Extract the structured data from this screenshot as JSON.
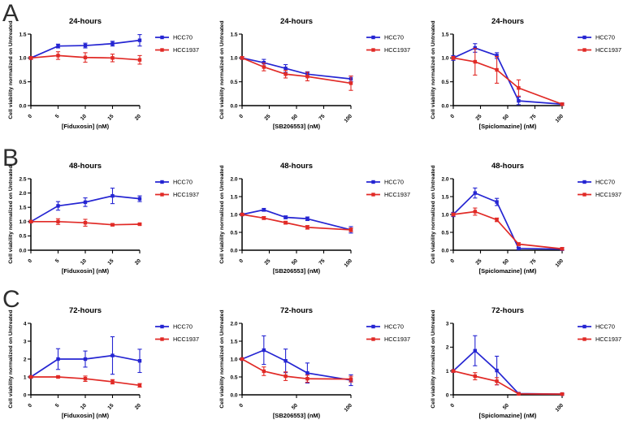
{
  "figure": {
    "background": "#ffffff",
    "panels": [
      {
        "letter": "A",
        "time": "24-hours"
      },
      {
        "letter": "B",
        "time": "48-hours"
      },
      {
        "letter": "C",
        "time": "72-hours"
      }
    ],
    "ylabel": "Cell viability normalized on Untreated",
    "legend_entries": [
      "HCC70",
      "HCC1937"
    ]
  },
  "colors": {
    "hcc70": "#2525d2",
    "hcc1937": "#e12a26",
    "axis": "#000000",
    "text": "#000000"
  },
  "chart_data": [
    {
      "type": "line",
      "panel": "A",
      "title": "24-hours",
      "xlabel": "[Fiduxosin] (nM)",
      "ylabel": "Cell viability normalized on Untreated",
      "x": [
        0,
        5,
        10,
        15,
        20
      ],
      "xlim": [
        0,
        20
      ],
      "xtick_values": [
        0,
        5,
        10,
        15,
        20
      ],
      "xtick_labels": [
        "0",
        "5",
        "10",
        "15",
        "20"
      ],
      "ylim": [
        0,
        1.5
      ],
      "ytick_values": [
        0,
        0.5,
        1,
        1.5
      ],
      "ytick_labels": [
        "0.0",
        "0.5",
        "1.0",
        "1.5"
      ],
      "grid": false,
      "legend_position": "right-top",
      "series": [
        {
          "name": "HCC70",
          "color": "#2525d2",
          "values": [
            1.0,
            1.25,
            1.26,
            1.3,
            1.37
          ],
          "errors": [
            0.03,
            0.04,
            0.05,
            0.05,
            0.12
          ]
        },
        {
          "name": "HCC1937",
          "color": "#e12a26",
          "values": [
            1.0,
            1.05,
            1.01,
            1.0,
            0.96
          ],
          "errors": [
            0.03,
            0.08,
            0.1,
            0.08,
            0.09
          ]
        }
      ]
    },
    {
      "type": "line",
      "panel": "A",
      "title": "24-hours",
      "xlabel": "[SB206553] (nM)",
      "ylabel": "Cell viability normalized on Untreated",
      "x": [
        0,
        20,
        40,
        60,
        100
      ],
      "xlim": [
        0,
        100
      ],
      "xtick_values": [
        0,
        25,
        50,
        75,
        100
      ],
      "xtick_labels": [
        "0",
        "25",
        "50",
        "75",
        "100"
      ],
      "ylim": [
        0,
        1.5
      ],
      "ytick_values": [
        0,
        0.5,
        1,
        1.5
      ],
      "ytick_labels": [
        "0.0",
        "0.5",
        "1.0",
        "1.5"
      ],
      "grid": false,
      "legend_position": "right-top",
      "series": [
        {
          "name": "HCC70",
          "color": "#2525d2",
          "values": [
            1.0,
            0.9,
            0.78,
            0.66,
            0.56
          ],
          "errors": [
            0.03,
            0.07,
            0.08,
            0.05,
            0.06
          ]
        },
        {
          "name": "HCC1937",
          "color": "#e12a26",
          "values": [
            1.0,
            0.81,
            0.66,
            0.61,
            0.47
          ],
          "errors": [
            0.03,
            0.08,
            0.08,
            0.09,
            0.15
          ]
        }
      ]
    },
    {
      "type": "line",
      "panel": "A",
      "title": "24-hours",
      "xlabel": "[Spiclomazine] (nM)",
      "ylabel": "Cell viability normalized on Untreated",
      "x": [
        0,
        20,
        40,
        60,
        100
      ],
      "xlim": [
        0,
        100
      ],
      "xtick_values": [
        0,
        25,
        50,
        75,
        100
      ],
      "xtick_labels": [
        "0",
        "25",
        "50",
        "75",
        "100"
      ],
      "ylim": [
        0,
        1.5
      ],
      "ytick_values": [
        0,
        0.5,
        1,
        1.5
      ],
      "ytick_labels": [
        "0.0",
        "0.5",
        "1.0",
        "1.5"
      ],
      "grid": false,
      "legend_position": "right-top",
      "series": [
        {
          "name": "HCC70",
          "color": "#2525d2",
          "values": [
            1.0,
            1.21,
            1.05,
            0.1,
            0.03
          ],
          "errors": [
            0.05,
            0.09,
            0.06,
            0.08,
            0.02
          ]
        },
        {
          "name": "HCC1937",
          "color": "#e12a26",
          "values": [
            1.0,
            0.92,
            0.75,
            0.37,
            0.03
          ],
          "errors": [
            0.03,
            0.28,
            0.28,
            0.17,
            0.02
          ]
        }
      ]
    },
    {
      "type": "line",
      "panel": "B",
      "title": "48-hours",
      "xlabel": "[Fiduxosin] (nM)",
      "ylabel": "Cell viability normalized on Untreated",
      "x": [
        0,
        5,
        10,
        15,
        20
      ],
      "xlim": [
        0,
        20
      ],
      "xtick_values": [
        0,
        5,
        10,
        15,
        20
      ],
      "xtick_labels": [
        "0",
        "5",
        "10",
        "15",
        "20"
      ],
      "ylim": [
        0,
        2.5
      ],
      "ytick_values": [
        0,
        0.5,
        1,
        1.5,
        2,
        2.5
      ],
      "ytick_labels": [
        "0.0",
        "0.5",
        "1.0",
        "1.5",
        "2.0",
        "2.5"
      ],
      "grid": false,
      "legend_position": "right-top",
      "series": [
        {
          "name": "HCC70",
          "color": "#2525d2",
          "values": [
            1.0,
            1.55,
            1.68,
            1.9,
            1.8
          ],
          "errors": [
            0.04,
            0.15,
            0.15,
            0.27,
            0.1
          ]
        },
        {
          "name": "HCC1937",
          "color": "#e12a26",
          "values": [
            1.0,
            1.0,
            0.96,
            0.89,
            0.91
          ],
          "errors": [
            0.04,
            0.1,
            0.12,
            0.04,
            0.03
          ]
        }
      ]
    },
    {
      "type": "line",
      "panel": "B",
      "title": "48-hours",
      "xlabel": "[SB206553] (nM)",
      "ylabel": "Cell viability normalized on Untreated",
      "x": [
        0,
        20,
        40,
        60,
        100
      ],
      "xlim": [
        0,
        100
      ],
      "xtick_values": [
        0,
        25,
        50,
        75,
        100
      ],
      "xtick_labels": [
        "0",
        "25",
        "50",
        "75",
        "100"
      ],
      "ylim": [
        0,
        2
      ],
      "ytick_values": [
        0,
        0.5,
        1,
        1.5,
        2
      ],
      "ytick_labels": [
        "0.0",
        "0.5",
        "1.0",
        "1.5",
        "2.0"
      ],
      "grid": false,
      "legend_position": "right-top",
      "series": [
        {
          "name": "HCC70",
          "color": "#2525d2",
          "values": [
            1.0,
            1.13,
            0.92,
            0.88,
            0.57
          ],
          "errors": [
            0.03,
            0.04,
            0.04,
            0.05,
            0.09
          ]
        },
        {
          "name": "HCC1937",
          "color": "#e12a26",
          "values": [
            1.0,
            0.9,
            0.77,
            0.64,
            0.57
          ],
          "errors": [
            0.03,
            0.04,
            0.04,
            0.05,
            0.05
          ]
        }
      ]
    },
    {
      "type": "line",
      "panel": "B",
      "title": "48-hours",
      "xlabel": "[Spiclomazine] (nM)",
      "ylabel": "Cell viability normalized on Untreated",
      "x": [
        0,
        20,
        40,
        60,
        100
      ],
      "xlim": [
        0,
        100
      ],
      "xtick_values": [
        0,
        25,
        50,
        75,
        100
      ],
      "xtick_labels": [
        "0",
        "25",
        "50",
        "75",
        "100"
      ],
      "ylim": [
        0,
        2
      ],
      "ytick_values": [
        0,
        0.5,
        1,
        1.5,
        2
      ],
      "ytick_labels": [
        "0.0",
        "0.5",
        "1.0",
        "1.5",
        "2.0"
      ],
      "grid": false,
      "legend_position": "right-top",
      "series": [
        {
          "name": "HCC70",
          "color": "#2525d2",
          "values": [
            1.0,
            1.6,
            1.35,
            0.05,
            0.03
          ],
          "errors": [
            0.06,
            0.14,
            0.1,
            0.03,
            0.04
          ]
        },
        {
          "name": "HCC1937",
          "color": "#e12a26",
          "values": [
            1.0,
            1.08,
            0.85,
            0.17,
            0.04
          ],
          "errors": [
            0.04,
            0.1,
            0.05,
            0.04,
            0.03
          ]
        }
      ]
    },
    {
      "type": "line",
      "panel": "C",
      "title": "72-hours",
      "xlabel": "[Fiduxosin] (nM)",
      "ylabel": "Cell viability normalized on Untreated",
      "x": [
        0,
        5,
        10,
        15,
        20
      ],
      "xlim": [
        0,
        20
      ],
      "xtick_values": [
        0,
        5,
        10,
        15,
        20
      ],
      "xtick_labels": [
        "0",
        "5",
        "10",
        "15",
        "20"
      ],
      "ylim": [
        0,
        4
      ],
      "ytick_values": [
        0,
        1,
        2,
        3,
        4
      ],
      "ytick_labels": [
        "0",
        "1",
        "2",
        "3",
        "4"
      ],
      "grid": false,
      "legend_position": "right-top",
      "series": [
        {
          "name": "HCC70",
          "color": "#2525d2",
          "values": [
            1.0,
            2.0,
            2.0,
            2.2,
            1.9
          ],
          "errors": [
            0.06,
            0.58,
            0.45,
            1.05,
            0.65
          ]
        },
        {
          "name": "HCC1937",
          "color": "#e12a26",
          "values": [
            1.0,
            1.0,
            0.9,
            0.73,
            0.53
          ],
          "errors": [
            0.03,
            0.05,
            0.15,
            0.12,
            0.1
          ]
        }
      ]
    },
    {
      "type": "line",
      "panel": "C",
      "title": "72-hours",
      "xlabel": "[SB206553] (nM)",
      "ylabel": "Cell viability normalized on Untreated",
      "x": [
        0,
        20,
        40,
        60,
        100
      ],
      "xlim": [
        0,
        100
      ],
      "xtick_values": [
        0,
        50,
        100
      ],
      "xtick_labels": [
        "0",
        "50",
        "100"
      ],
      "ylim": [
        0,
        2
      ],
      "ytick_values": [
        0,
        0.5,
        1,
        1.5,
        2
      ],
      "ytick_labels": [
        "0.0",
        "0.5",
        "1.0",
        "1.5",
        "2.0"
      ],
      "grid": false,
      "legend_position": "right-top",
      "series": [
        {
          "name": "HCC70",
          "color": "#2525d2",
          "values": [
            1.0,
            1.25,
            0.95,
            0.61,
            0.41
          ],
          "errors": [
            0.03,
            0.4,
            0.33,
            0.28,
            0.15
          ]
        },
        {
          "name": "HCC1937",
          "color": "#e12a26",
          "values": [
            1.0,
            0.66,
            0.52,
            0.45,
            0.44
          ],
          "errors": [
            0.03,
            0.12,
            0.12,
            0.1,
            0.08
          ]
        }
      ]
    },
    {
      "type": "line",
      "panel": "C",
      "title": "72-hours",
      "xlabel": "[Spiclomazine] (nM)",
      "ylabel": "Cell viability normalized on Untreated",
      "x": [
        0,
        20,
        40,
        60,
        100
      ],
      "xlim": [
        0,
        100
      ],
      "xtick_values": [
        0,
        50,
        100
      ],
      "xtick_labels": [
        "0",
        "50",
        "100"
      ],
      "ylim": [
        0,
        3
      ],
      "ytick_values": [
        0,
        1,
        2,
        3
      ],
      "ytick_labels": [
        "0",
        "1",
        "2",
        "3"
      ],
      "grid": false,
      "legend_position": "right-top",
      "series": [
        {
          "name": "HCC70",
          "color": "#2525d2",
          "values": [
            1.0,
            1.85,
            1.02,
            0.05,
            0.03
          ],
          "errors": [
            0.06,
            0.63,
            0.6,
            0.04,
            0.03
          ]
        },
        {
          "name": "HCC1937",
          "color": "#e12a26",
          "values": [
            1.0,
            0.78,
            0.57,
            0.04,
            0.03
          ],
          "errors": [
            0.05,
            0.15,
            0.15,
            0.03,
            0.03
          ]
        }
      ]
    }
  ]
}
